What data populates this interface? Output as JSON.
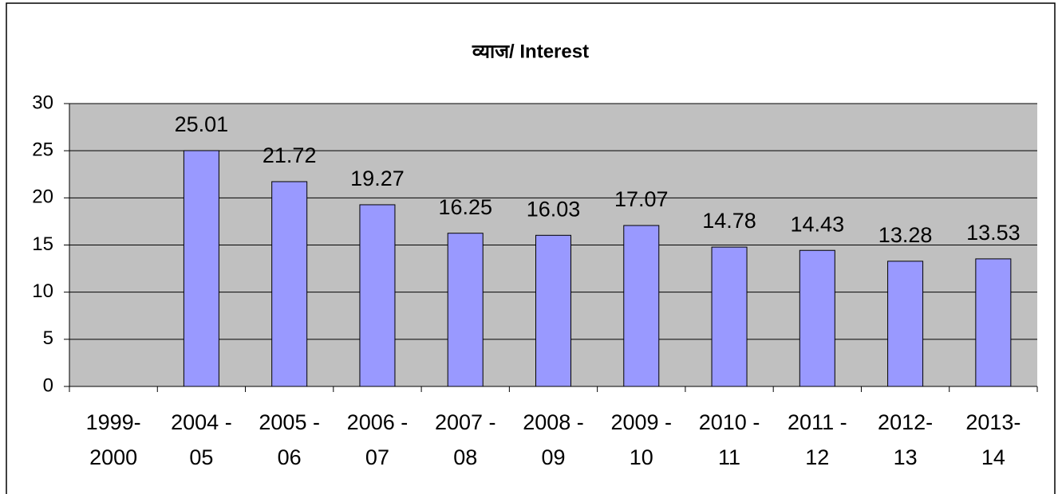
{
  "chart_data": {
    "type": "bar",
    "title": "व्याज/ Interest",
    "categories": [
      "1999-\n2000",
      "2004 -\n05",
      "2005 -\n06",
      "2006 -\n07",
      "2007 -\n08",
      "2008 -\n09",
      "2009 -\n10",
      "2010 -\n11",
      "2011 -\n12",
      "2012-\n13",
      "2013-\n14"
    ],
    "values": [
      null,
      25.01,
      21.72,
      19.27,
      16.25,
      16.03,
      17.07,
      14.78,
      14.43,
      13.28,
      13.53
    ],
    "color": "#9999ff",
    "ylim": [
      0,
      30
    ],
    "yticks": [
      0,
      5,
      10,
      15,
      20,
      25,
      30
    ],
    "grid": true
  }
}
